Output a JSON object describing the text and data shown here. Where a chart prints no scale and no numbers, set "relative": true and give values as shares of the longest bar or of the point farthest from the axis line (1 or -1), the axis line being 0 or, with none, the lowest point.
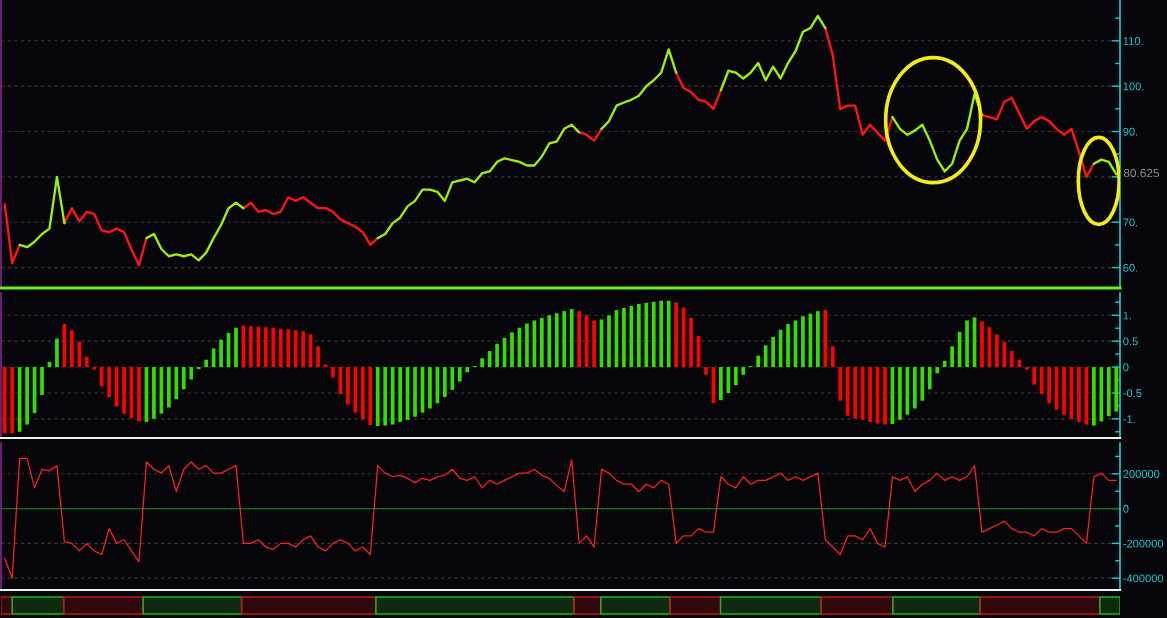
{
  "chart_data": [
    {
      "type": "line",
      "categories": [
        null,
        null,
        null,
        null,
        null,
        null,
        null,
        null,
        null,
        null,
        null,
        null,
        null,
        null,
        null,
        null,
        null,
        null,
        null,
        null,
        null,
        null,
        null,
        null,
        null,
        null,
        null,
        null,
        null,
        null,
        null,
        null,
        null,
        null,
        null,
        null,
        null,
        null,
        null,
        null,
        null,
        null,
        null,
        null,
        null,
        null,
        null,
        null,
        null,
        null,
        null,
        null,
        null,
        null,
        null,
        null,
        null,
        null,
        null,
        null,
        null,
        null,
        null,
        null,
        null,
        null,
        null,
        null,
        null,
        null,
        null,
        null,
        null,
        null,
        null,
        null,
        null,
        null,
        null,
        null,
        null,
        null,
        null,
        null,
        null,
        null,
        null,
        null,
        null,
        null,
        null,
        null,
        null,
        null,
        null,
        null,
        null,
        null,
        null,
        null,
        null,
        null,
        null,
        null,
        null,
        null,
        null,
        null,
        null,
        null,
        null,
        null,
        null,
        null,
        null,
        null,
        null,
        null,
        null,
        null,
        null,
        null,
        null,
        null,
        null,
        null,
        null,
        null,
        null,
        null,
        null,
        null,
        null,
        null,
        null,
        null,
        null,
        null,
        null,
        null,
        null,
        null,
        null,
        null,
        null,
        null,
        null,
        null,
        null,
        null
      ],
      "series": [
        {
          "color": "#ff1414",
          "values": [
            74,
            61,
            65,
            null,
            null,
            null,
            null,
            null,
            69.8,
            73.1,
            70.2,
            72.3,
            71.8,
            68.2,
            67.8,
            68.6,
            67.8,
            64,
            60.5,
            66.5,
            null,
            null,
            null,
            null,
            null,
            null,
            null,
            null,
            null,
            null,
            null,
            null,
            73.1,
            74.3,
            72.3,
            72.7,
            71.8,
            72.3,
            75.5,
            74.7,
            75.5,
            74.3,
            73.1,
            73.1,
            72.3,
            70.6,
            69.8,
            69,
            67.8,
            65,
            66.5,
            null,
            null,
            null,
            null,
            null,
            null,
            null,
            null,
            null,
            null,
            null,
            null,
            null,
            null,
            null,
            null,
            null,
            null,
            null,
            null,
            null,
            null,
            null,
            null,
            null,
            null,
            89.8,
            89.3,
            88,
            90.6,
            null,
            null,
            null,
            null,
            null,
            null,
            null,
            null,
            null,
            103,
            99.6,
            98.7,
            97,
            96.6,
            95,
            99.1,
            null,
            null,
            null,
            null,
            null,
            null,
            null,
            null,
            null,
            null,
            null,
            null,
            null,
            112.8,
            106.8,
            94.9,
            95.7,
            95.7,
            89.3,
            91.5,
            89.7,
            88,
            93.2,
            null,
            null,
            null,
            null,
            null,
            null,
            null,
            null,
            null,
            null,
            null,
            93.6,
            93.2,
            92.7,
            96.6,
            97.4,
            94,
            90.6,
            92.3,
            93.2,
            92.3,
            90.6,
            89.3,
            90.6,
            85.5,
            80,
            82.9,
            null,
            null,
            null
          ]
        },
        {
          "color": "#9aee10",
          "values": [
            null,
            null,
            65,
            64.5,
            65.7,
            67.4,
            68.6,
            80,
            69.8,
            null,
            null,
            null,
            null,
            null,
            null,
            null,
            null,
            null,
            null,
            66.5,
            67.4,
            64.1,
            62.5,
            62.9,
            62.5,
            62.9,
            61.6,
            63.3,
            66.5,
            69.4,
            73.1,
            74.3,
            73.1,
            null,
            null,
            null,
            null,
            null,
            null,
            null,
            null,
            null,
            null,
            null,
            null,
            null,
            null,
            null,
            null,
            null,
            66.5,
            67.4,
            69.8,
            71,
            73.5,
            74.7,
            77.2,
            77.2,
            76.7,
            74.7,
            78.8,
            79.2,
            79.6,
            78.8,
            80.8,
            81.2,
            83.3,
            84.1,
            83.7,
            83.3,
            82.5,
            82.5,
            84.5,
            87.4,
            87.8,
            90.6,
            91.5,
            89.8,
            null,
            null,
            90.6,
            92.3,
            95.7,
            96.4,
            97,
            97.9,
            100,
            101.3,
            103,
            108.1,
            103,
            null,
            null,
            null,
            null,
            null,
            99.1,
            103.4,
            103,
            101.7,
            103,
            105.1,
            101.3,
            104.3,
            101.7,
            105.1,
            107.7,
            112,
            112.8,
            115.5,
            112.8,
            null,
            null,
            null,
            null,
            null,
            null,
            null,
            null,
            93.2,
            90.6,
            89.3,
            90.2,
            91.5,
            88,
            83.8,
            81.2,
            82.9,
            88,
            90.6,
            98.3,
            93.6,
            null,
            null,
            null,
            null,
            null,
            null,
            null,
            null,
            null,
            null,
            null,
            null,
            null,
            null,
            82.9,
            83.8,
            83.3,
            80.6
          ]
        }
      ],
      "ylim": [
        55.5,
        119
      ],
      "yticks": [
        {
          "value": 60,
          "label": "60."
        },
        {
          "value": 70,
          "label": "70."
        },
        {
          "value": 80,
          "label": null
        },
        {
          "value": 90,
          "label": "90."
        },
        {
          "value": 100,
          "label": "100."
        },
        {
          "value": 110,
          "label": "110."
        }
      ],
      "grid": "y",
      "tick_labels": "y",
      "annotations": [
        {
          "text": "80.625",
          "y": 80.625
        }
      ]
    },
    {
      "type": "bar",
      "categories": [
        null,
        null,
        null,
        null,
        null,
        null,
        null,
        null,
        null,
        null,
        null,
        null,
        null,
        null,
        null,
        null,
        null,
        null,
        null,
        null,
        null,
        null,
        null,
        null,
        null,
        null,
        null,
        null,
        null,
        null,
        null,
        null,
        null,
        null,
        null,
        null,
        null,
        null,
        null,
        null,
        null,
        null,
        null,
        null,
        null,
        null,
        null,
        null,
        null,
        null,
        null,
        null,
        null,
        null,
        null,
        null,
        null,
        null,
        null,
        null,
        null,
        null,
        null,
        null,
        null,
        null,
        null,
        null,
        null,
        null,
        null,
        null,
        null,
        null,
        null,
        null,
        null,
        null,
        null,
        null,
        null,
        null,
        null,
        null,
        null,
        null,
        null,
        null,
        null,
        null,
        null,
        null,
        null,
        null,
        null,
        null,
        null,
        null,
        null,
        null,
        null,
        null,
        null,
        null,
        null,
        null,
        null,
        null,
        null,
        null,
        null,
        null,
        null,
        null,
        null,
        null,
        null,
        null,
        null,
        null,
        null,
        null,
        null,
        null,
        null,
        null,
        null,
        null,
        null,
        null,
        null,
        null,
        null,
        null,
        null,
        null,
        null,
        null,
        null,
        null,
        null,
        null,
        null,
        null,
        null,
        null,
        null,
        null,
        null,
        null
      ],
      "values": [
        -1.28,
        -1.28,
        -1.25,
        -1.11,
        -0.89,
        -0.54,
        0.1,
        0.55,
        0.83,
        0.71,
        0.49,
        0.2,
        -0.05,
        -0.37,
        -0.58,
        -0.76,
        -0.9,
        -0.99,
        -1.05,
        -1.06,
        -1,
        -0.9,
        -0.78,
        -0.62,
        -0.43,
        -0.24,
        -0.04,
        0.14,
        0.36,
        0.53,
        0.66,
        0.76,
        0.8,
        0.79,
        0.78,
        0.77,
        0.76,
        0.74,
        0.73,
        0.71,
        0.69,
        0.63,
        0.4,
        0.05,
        -0.2,
        -0.52,
        -0.72,
        -0.88,
        -1.01,
        -1.12,
        -1.14,
        -1.13,
        -1.11,
        -1.06,
        -1.02,
        -0.96,
        -0.88,
        -0.8,
        -0.7,
        -0.58,
        -0.44,
        -0.28,
        -0.1,
        0.02,
        0.17,
        0.31,
        0.45,
        0.56,
        0.67,
        0.76,
        0.84,
        0.9,
        0.95,
        1,
        1.04,
        1.08,
        1.12,
        1.08,
        1,
        0.9,
        0.92,
        1,
        1.1,
        1.14,
        1.18,
        1.22,
        1.24,
        1.26,
        1.28,
        1.28,
        1.25,
        1.15,
        0.95,
        0.6,
        -0.15,
        -0.7,
        -0.64,
        -0.5,
        -0.35,
        -0.15,
        0.02,
        0.22,
        0.42,
        0.58,
        0.72,
        0.83,
        0.9,
        0.98,
        1.03,
        1.08,
        1.1,
        0.4,
        -0.65,
        -0.94,
        -0.99,
        -1.02,
        -1.06,
        -1.09,
        -1.11,
        -1.1,
        -1.02,
        -0.92,
        -0.8,
        -0.65,
        -0.43,
        -0.12,
        0.12,
        0.4,
        0.68,
        0.9,
        0.96,
        0.88,
        0.77,
        0.63,
        0.48,
        0.31,
        0.14,
        -0.05,
        -0.34,
        -0.52,
        -0.7,
        -0.82,
        -0.92,
        -1,
        -1.06,
        -1.11,
        -1.13,
        -1.05,
        -0.95,
        -0.86
      ],
      "colors": [
        "#ff0000",
        "#ff0000",
        "#33dd00",
        "#33dd00",
        "#33dd00",
        "#33dd00",
        "#33dd00",
        "#33dd00",
        "#ff0000",
        "#ff0000",
        "#ff0000",
        "#ff0000",
        "#ff0000",
        "#ff0000",
        "#ff0000",
        "#ff0000",
        "#ff0000",
        "#ff0000",
        "#ff0000",
        "#33dd00",
        "#33dd00",
        "#33dd00",
        "#33dd00",
        "#33dd00",
        "#33dd00",
        "#33dd00",
        "#33dd00",
        "#33dd00",
        "#33dd00",
        "#33dd00",
        "#33dd00",
        "#33dd00",
        "#ff0000",
        "#ff0000",
        "#ff0000",
        "#ff0000",
        "#ff0000",
        "#ff0000",
        "#ff0000",
        "#ff0000",
        "#ff0000",
        "#ff0000",
        "#ff0000",
        "#ff0000",
        "#ff0000",
        "#ff0000",
        "#ff0000",
        "#ff0000",
        "#ff0000",
        "#ff0000",
        "#33dd00",
        "#33dd00",
        "#33dd00",
        "#33dd00",
        "#33dd00",
        "#33dd00",
        "#33dd00",
        "#33dd00",
        "#33dd00",
        "#33dd00",
        "#33dd00",
        "#33dd00",
        "#33dd00",
        "#33dd00",
        "#33dd00",
        "#33dd00",
        "#33dd00",
        "#33dd00",
        "#33dd00",
        "#33dd00",
        "#33dd00",
        "#33dd00",
        "#33dd00",
        "#33dd00",
        "#33dd00",
        "#33dd00",
        "#33dd00",
        "#ff0000",
        "#ff0000",
        "#ff0000",
        "#33dd00",
        "#33dd00",
        "#33dd00",
        "#33dd00",
        "#33dd00",
        "#33dd00",
        "#33dd00",
        "#33dd00",
        "#33dd00",
        "#33dd00",
        "#ff0000",
        "#ff0000",
        "#ff0000",
        "#ff0000",
        "#ff0000",
        "#ff0000",
        "#33dd00",
        "#33dd00",
        "#33dd00",
        "#33dd00",
        "#33dd00",
        "#33dd00",
        "#33dd00",
        "#33dd00",
        "#33dd00",
        "#33dd00",
        "#33dd00",
        "#33dd00",
        "#33dd00",
        "#33dd00",
        "#ff0000",
        "#ff0000",
        "#ff0000",
        "#ff0000",
        "#ff0000",
        "#ff0000",
        "#ff0000",
        "#ff0000",
        "#ff0000",
        "#33dd00",
        "#33dd00",
        "#33dd00",
        "#33dd00",
        "#33dd00",
        "#33dd00",
        "#33dd00",
        "#33dd00",
        "#33dd00",
        "#33dd00",
        "#33dd00",
        "#33dd00",
        "#ff0000",
        "#ff0000",
        "#ff0000",
        "#ff0000",
        "#ff0000",
        "#ff0000",
        "#ff0000",
        "#ff0000",
        "#ff0000",
        "#ff0000",
        "#ff0000",
        "#ff0000",
        "#ff0000",
        "#ff0000",
        "#ff0000",
        "#33dd00",
        "#33dd00",
        "#33dd00",
        "#33dd00"
      ],
      "ylim": [
        -1.37,
        1.43
      ],
      "yticks": [
        {
          "value": 1,
          "label": "1."
        },
        0.5,
        0,
        -0.5,
        {
          "value": -1,
          "label": "-1."
        }
      ],
      "grid": "y",
      "tick_labels": "y"
    },
    {
      "type": "line",
      "categories": [
        null,
        null,
        null,
        null,
        null,
        null,
        null,
        null,
        null,
        null,
        null,
        null,
        null,
        null,
        null,
        null,
        null,
        null,
        null,
        null,
        null,
        null,
        null,
        null,
        null,
        null,
        null,
        null,
        null,
        null,
        null,
        null,
        null,
        null,
        null,
        null,
        null,
        null,
        null,
        null,
        null,
        null,
        null,
        null,
        null,
        null,
        null,
        null,
        null,
        null,
        null,
        null,
        null,
        null,
        null,
        null,
        null,
        null,
        null,
        null,
        null,
        null,
        null,
        null,
        null,
        null,
        null,
        null,
        null,
        null,
        null,
        null,
        null,
        null,
        null,
        null,
        null,
        null,
        null,
        null,
        null,
        null,
        null,
        null,
        null,
        null,
        null,
        null,
        null,
        null,
        null,
        null,
        null,
        null,
        null,
        null,
        null,
        null,
        null,
        null,
        null,
        null,
        null,
        null,
        null,
        null,
        null,
        null,
        null,
        null,
        null,
        null,
        null,
        null,
        null,
        null,
        null,
        null,
        null,
        null,
        null,
        null,
        null,
        null,
        null,
        null,
        null,
        null,
        null,
        null,
        null,
        null,
        null,
        null,
        null,
        null,
        null,
        null,
        null,
        null,
        null,
        null,
        null,
        null,
        null,
        null,
        null,
        null,
        null,
        null
      ],
      "series": [
        {
          "color": "#ff2020",
          "values": [
            -285000,
            -400000,
            289000,
            289000,
            119000,
            226000,
            217000,
            247000,
            -190000,
            -200000,
            -243000,
            -200000,
            -243000,
            -264000,
            -115000,
            -200000,
            -179000,
            -243000,
            -306000,
            268000,
            226000,
            204000,
            247000,
            98000,
            226000,
            268000,
            226000,
            247000,
            204000,
            204000,
            226000,
            247000,
            -200000,
            -200000,
            -179000,
            -221000,
            -234000,
            -200000,
            -200000,
            -221000,
            -179000,
            -157000,
            -221000,
            -243000,
            -200000,
            -179000,
            -200000,
            -243000,
            -221000,
            -264000,
            247000,
            204000,
            183000,
            191000,
            174000,
            149000,
            174000,
            162000,
            183000,
            191000,
            226000,
            174000,
            162000,
            183000,
            119000,
            162000,
            140000,
            162000,
            183000,
            204000,
            204000,
            226000,
            191000,
            174000,
            132000,
            98000,
            280000,
            -200000,
            -157000,
            -221000,
            226000,
            204000,
            162000,
            140000,
            140000,
            98000,
            140000,
            119000,
            162000,
            140000,
            -200000,
            -157000,
            -157000,
            -115000,
            -136000,
            -136000,
            183000,
            140000,
            119000,
            183000,
            140000,
            162000,
            162000,
            183000,
            204000,
            162000,
            183000,
            162000,
            183000,
            204000,
            -179000,
            -221000,
            -264000,
            -157000,
            -157000,
            -179000,
            -115000,
            -200000,
            -221000,
            183000,
            162000,
            183000,
            98000,
            140000,
            162000,
            204000,
            162000,
            183000,
            162000,
            183000,
            247000,
            -136000,
            -115000,
            -94000,
            -72000,
            -115000,
            -136000,
            -136000,
            -157000,
            -115000,
            -136000,
            -136000,
            -115000,
            -115000,
            -157000,
            -200000,
            183000,
            204000,
            162000,
            162000
          ]
        }
      ],
      "ylim": [
        -468000,
        377000
      ],
      "yticks": [
        200000,
        0,
        -200000,
        -400000
      ],
      "grid": "y",
      "tick_labels": "y",
      "ref_lines": [
        {
          "axis": "y",
          "value": 0,
          "color": "#0c7a0c"
        }
      ]
    },
    {
      "type": "bar",
      "orientation": "horizontal",
      "stacked": true,
      "relative": true,
      "categories": [
        null
      ],
      "tick_labels": false,
      "series": [
        {
          "color": "#c01414",
          "values": [
            0.01
          ]
        },
        {
          "color": "#22b022",
          "values": [
            0.046
          ]
        },
        {
          "color": "#c01414",
          "values": [
            0.071
          ]
        },
        {
          "color": "#22b022",
          "values": [
            0.088
          ]
        },
        {
          "color": "#c01414",
          "values": [
            0.12
          ]
        },
        {
          "color": "#22b022",
          "values": [
            0.177
          ]
        },
        {
          "color": "#c01414",
          "values": [
            0.024
          ]
        },
        {
          "color": "#22b022",
          "values": [
            0.062
          ]
        },
        {
          "color": "#c01414",
          "values": [
            0.045
          ]
        },
        {
          "color": "#22b022",
          "values": [
            0.09
          ]
        },
        {
          "color": "#c01414",
          "values": [
            0.064
          ]
        },
        {
          "color": "#22b022",
          "values": [
            0.078
          ]
        },
        {
          "color": "#c01414",
          "values": [
            0.107
          ]
        },
        {
          "color": "#22b022",
          "values": [
            0.018
          ]
        }
      ]
    }
  ]
}
